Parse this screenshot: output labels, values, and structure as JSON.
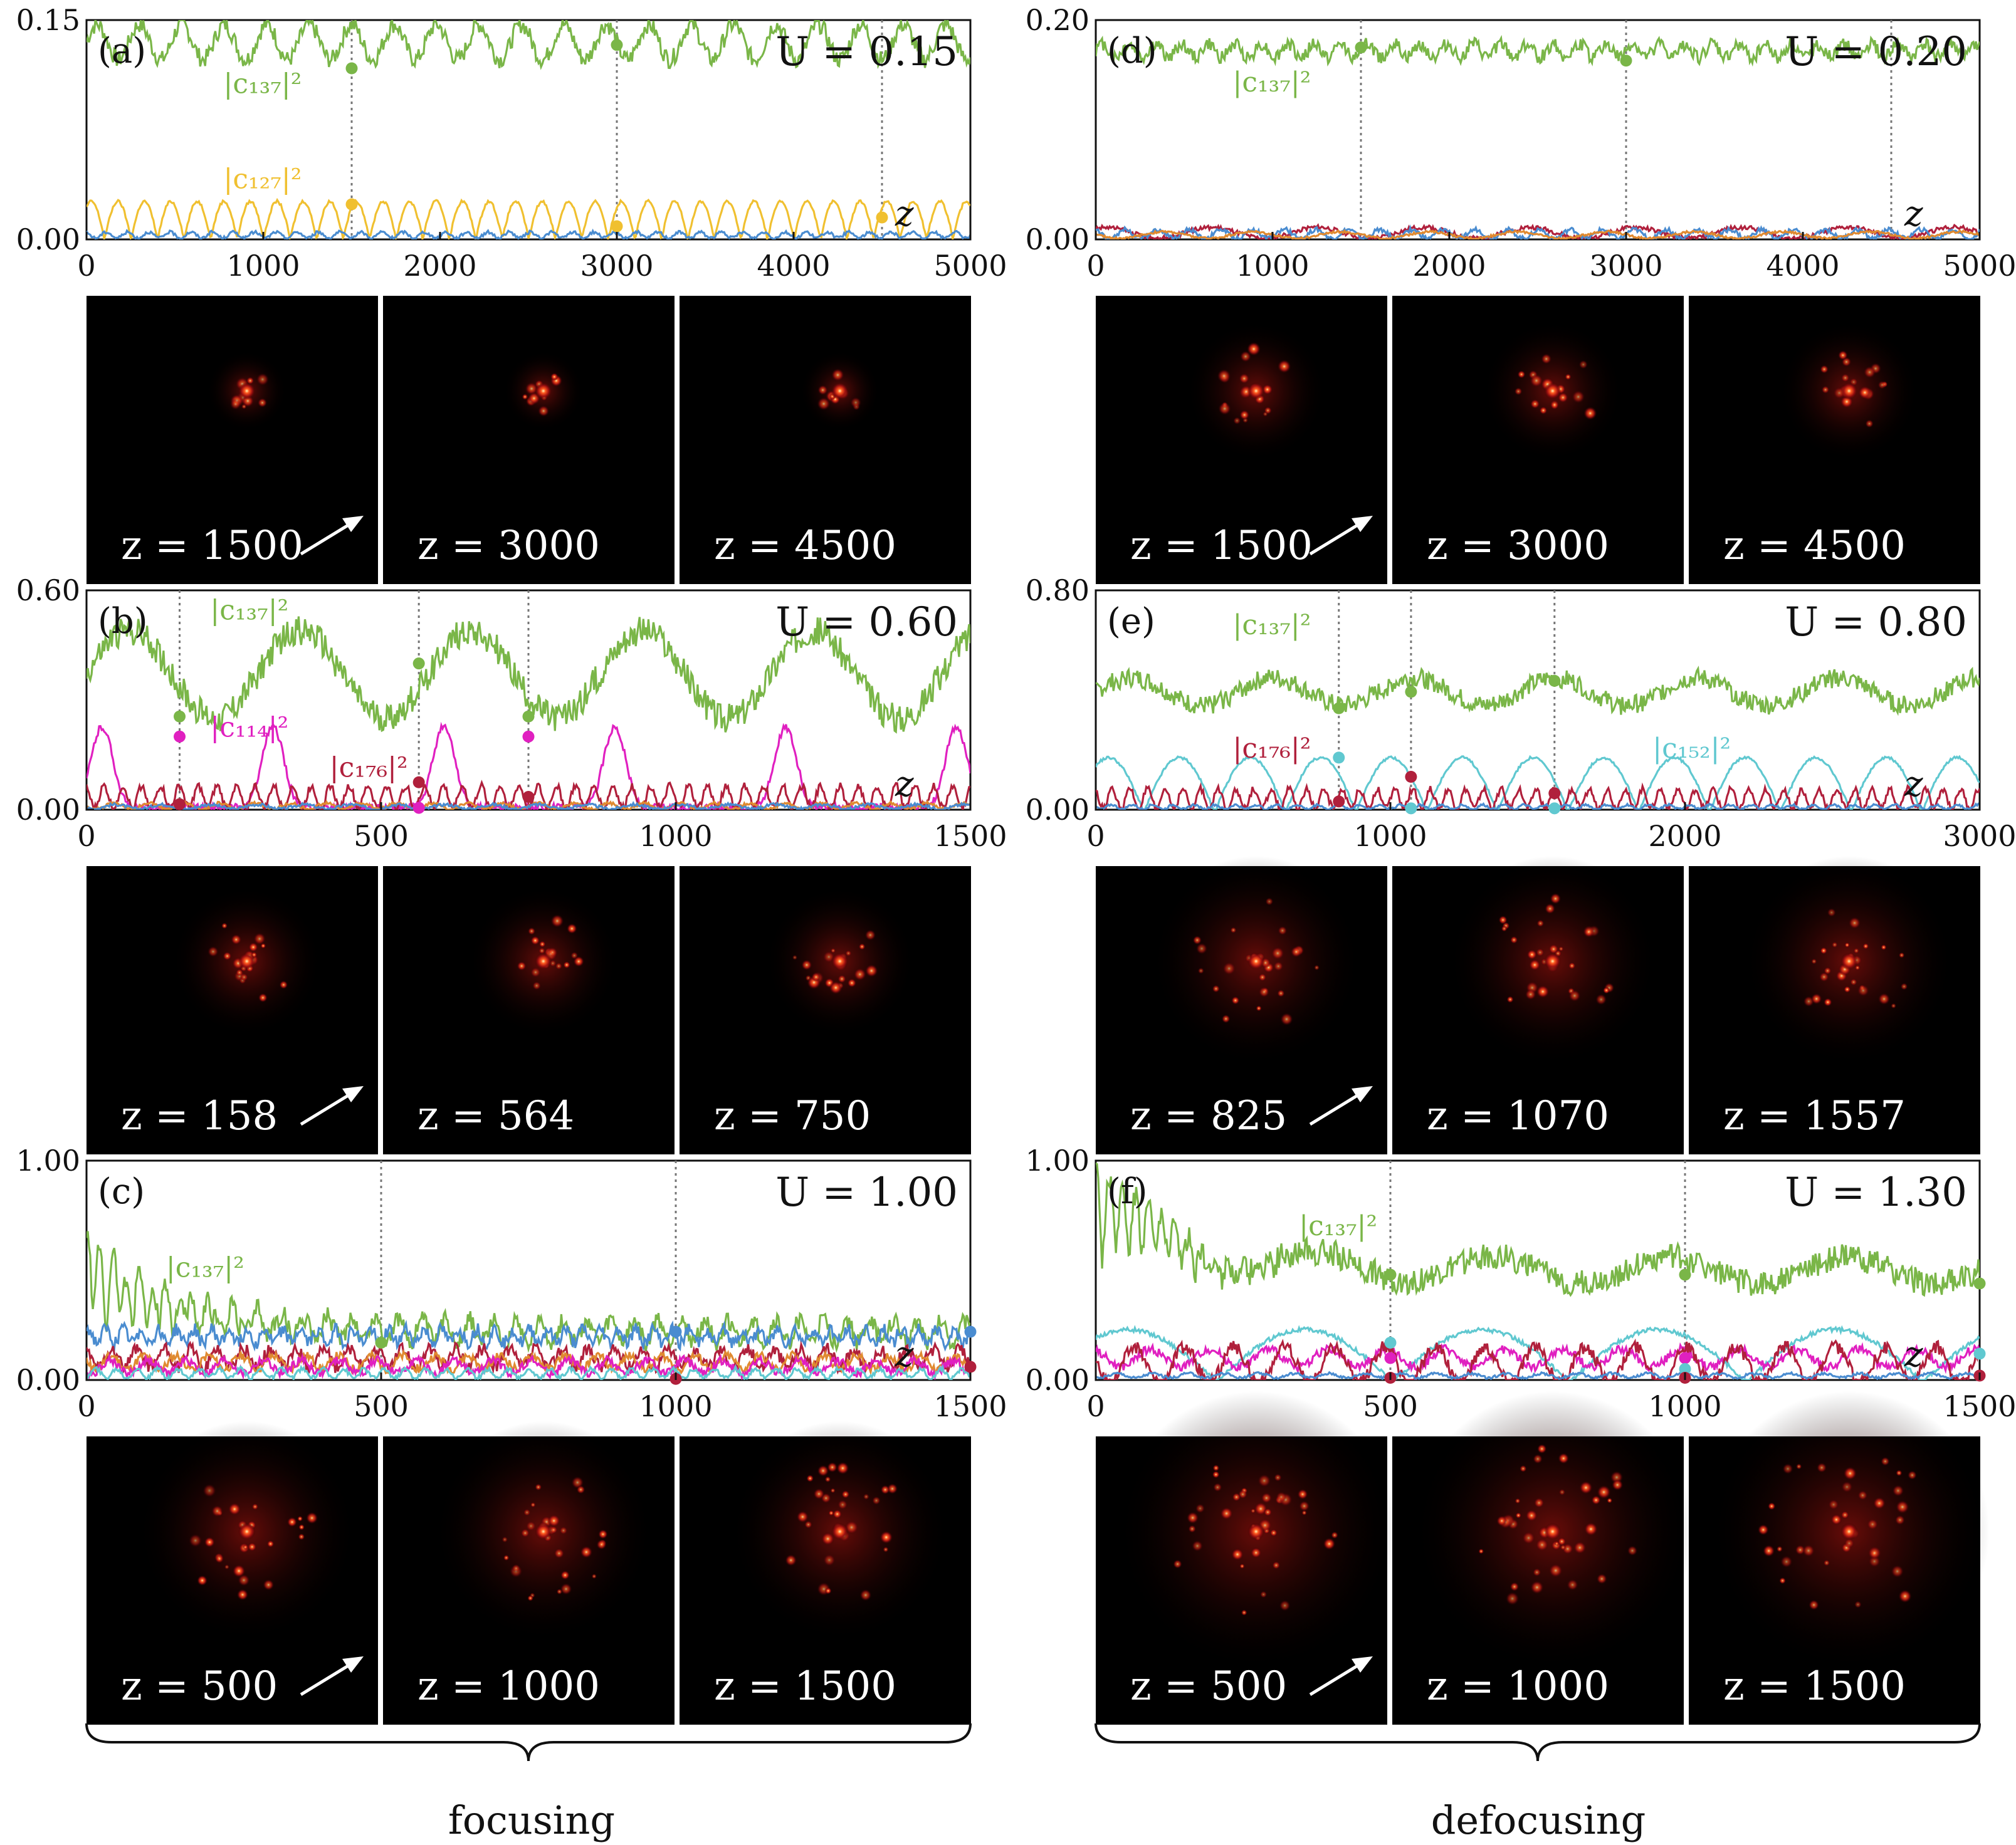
{
  "colors": {
    "green": "#7ab648",
    "yellow": "#f0c030",
    "blue": "#4a8cd0",
    "magenta": "#e020c0",
    "crimson": "#b0203c",
    "cyan": "#60c8d0",
    "orange": "#e08a30",
    "snapshot_bg": "#000000",
    "hot_core": "#fff5b0",
    "hot_mid": "#ff3a1a",
    "hot_dim": "#6a0a08"
  },
  "icons": {
    "arrow": "arrow-northeast-icon",
    "brace": "curly-brace-icon"
  },
  "bottom_labels": {
    "left": "focusing",
    "right": "defocusing"
  },
  "chart_data": [
    {
      "panel": "(a)",
      "type": "line",
      "u_label": "U = 0.15",
      "z_label": "z",
      "xlim": [
        0,
        5000
      ],
      "ylim": [
        0,
        0.15
      ],
      "xticks": [
        0,
        1000,
        2000,
        3000,
        4000,
        5000
      ],
      "yticks": [
        0.0,
        0.15
      ],
      "xticklabels": [
        "0",
        "1000",
        "2000",
        "3000",
        "4000",
        "5000"
      ],
      "yticklabels": [
        "0.00",
        "0.15"
      ],
      "vlines": [
        1500,
        3000,
        4500
      ],
      "series": [
        {
          "name": "|c137|²",
          "color": "green",
          "base": 0.135,
          "amp": 0.012,
          "period": 240,
          "noise": 0.006
        },
        {
          "name": "|c127|²",
          "color": "yellow",
          "base": 0.013,
          "amp": 0.013,
          "period": 300,
          "noise": 0.001,
          "abs": true
        },
        {
          "color": "blue",
          "base": 0.003,
          "amp": 0.002,
          "period": 120,
          "noise": 0.001
        }
      ],
      "markers": [
        {
          "x": 1500,
          "y": 0.117,
          "color": "green"
        },
        {
          "x": 3000,
          "y": 0.133,
          "color": "green"
        },
        {
          "x": 1500,
          "y": 0.024,
          "color": "yellow"
        },
        {
          "x": 3000,
          "y": 0.009,
          "color": "yellow"
        },
        {
          "x": 4500,
          "y": 0.015,
          "color": "yellow"
        }
      ],
      "series_labels": [
        {
          "text": "|c₁₃₇|²",
          "color": "green",
          "x": 0.155,
          "y": 0.1
        },
        {
          "text": "|c₁₂₇|²",
          "color": "yellow",
          "x": 0.155,
          "y": 0.035
        }
      ],
      "snapshots": [
        "z = 1500",
        "z = 3000",
        "z = 4500"
      ]
    },
    {
      "panel": "(b)",
      "type": "line",
      "u_label": "U = 0.60",
      "z_label": "z",
      "xlim": [
        0,
        1500
      ],
      "ylim": [
        0,
        0.6
      ],
      "xticks": [
        0,
        500,
        1000,
        1500
      ],
      "yticks": [
        0.0,
        0.6
      ],
      "xticklabels": [
        "0",
        "500",
        "1000",
        "1500"
      ],
      "yticklabels": [
        "0.00",
        "0.60"
      ],
      "vlines": [
        158,
        564,
        750
      ],
      "series": [
        {
          "name": "|c137|²",
          "color": "green",
          "base": 0.37,
          "amp": 0.12,
          "period": 290,
          "noise": 0.04
        },
        {
          "name": "|c114|²",
          "color": "magenta",
          "base": 0.05,
          "amp": 0.11,
          "period": 290,
          "noise": 0.01,
          "bump": true
        },
        {
          "name": "|c176|²",
          "color": "crimson",
          "base": 0.035,
          "amp": 0.03,
          "period": 32,
          "noise": 0.01
        },
        {
          "color": "orange",
          "base": 0.01,
          "amp": 0.008,
          "period": 60,
          "noise": 0.004
        },
        {
          "color": "blue",
          "base": 0.008,
          "amp": 0.006,
          "period": 80,
          "noise": 0.004
        }
      ],
      "markers": [
        {
          "x": 158,
          "y": 0.255,
          "color": "green"
        },
        {
          "x": 564,
          "y": 0.4,
          "color": "green"
        },
        {
          "x": 750,
          "y": 0.255,
          "color": "green"
        },
        {
          "x": 158,
          "y": 0.2,
          "color": "magenta"
        },
        {
          "x": 564,
          "y": 0.005,
          "color": "magenta"
        },
        {
          "x": 750,
          "y": 0.2,
          "color": "magenta"
        },
        {
          "x": 158,
          "y": 0.015,
          "color": "crimson"
        },
        {
          "x": 564,
          "y": 0.075,
          "color": "crimson"
        },
        {
          "x": 750,
          "y": 0.035,
          "color": "crimson"
        }
      ],
      "series_labels": [
        {
          "text": "|c₁₃₇|²",
          "color": "green",
          "x": 0.14,
          "y": 0.52
        },
        {
          "text": "|c₁₁₄|²",
          "color": "magenta",
          "x": 0.14,
          "y": 0.2
        },
        {
          "text": "|c₁₇₆|²",
          "color": "crimson",
          "x": 0.275,
          "y": 0.09
        }
      ],
      "snapshots": [
        "z = 158",
        "z = 564",
        "z = 750"
      ]
    },
    {
      "panel": "(c)",
      "type": "line",
      "u_label": "U = 1.00",
      "z_label": "z",
      "xlim": [
        0,
        1500
      ],
      "ylim": [
        0,
        1.0
      ],
      "xticks": [
        0,
        500,
        1000,
        1500
      ],
      "yticks": [
        0.0,
        1.0
      ],
      "xticklabels": [
        "0",
        "500",
        "1000",
        "1500"
      ],
      "yticklabels": [
        "0.00",
        "1.00"
      ],
      "vlines": [
        500,
        1000
      ],
      "series": [
        {
          "name": "|c137|²",
          "color": "green",
          "base": 0.22,
          "amp": 0.05,
          "period": 40,
          "noise": 0.04,
          "decay": true
        },
        {
          "color": "blue",
          "base": 0.2,
          "amp": 0.03,
          "period": 30,
          "noise": 0.03
        },
        {
          "color": "crimson",
          "base": 0.1,
          "amp": 0.04,
          "period": 45,
          "noise": 0.03
        },
        {
          "color": "orange",
          "base": 0.08,
          "amp": 0.03,
          "period": 55,
          "noise": 0.02
        },
        {
          "color": "magenta",
          "base": 0.06,
          "amp": 0.03,
          "period": 65,
          "noise": 0.02
        },
        {
          "color": "cyan",
          "base": 0.03,
          "amp": 0.02,
          "period": 35,
          "noise": 0.01
        }
      ],
      "markers": [
        {
          "x": 500,
          "y": 0.17,
          "color": "green"
        },
        {
          "x": 1000,
          "y": 0.22,
          "color": "blue"
        },
        {
          "x": 1000,
          "y": 0.005,
          "color": "crimson"
        },
        {
          "x": 1500,
          "y": 0.22,
          "color": "blue"
        },
        {
          "x": 1500,
          "y": 0.06,
          "color": "crimson"
        }
      ],
      "series_labels": [
        {
          "text": "|c₁₃₇|²",
          "color": "green",
          "x": 0.09,
          "y": 0.47
        }
      ],
      "snapshots": [
        "z = 500",
        "z = 1000",
        "z = 1500"
      ]
    },
    {
      "panel": "(d)",
      "type": "line",
      "u_label": "U = 0.20",
      "z_label": "z",
      "xlim": [
        0,
        5000
      ],
      "ylim": [
        0,
        0.2
      ],
      "xticks": [
        0,
        1000,
        2000,
        3000,
        4000,
        5000
      ],
      "yticks": [
        0.0,
        0.2
      ],
      "xticklabels": [
        "0",
        "1000",
        "2000",
        "3000",
        "4000",
        "5000"
      ],
      "yticklabels": [
        "0.00",
        "0.20"
      ],
      "vlines": [
        1500,
        3000,
        4500
      ],
      "series": [
        {
          "name": "|c137|²",
          "color": "green",
          "base": 0.172,
          "amp": 0.006,
          "period": 150,
          "noise": 0.006
        },
        {
          "color": "crimson",
          "base": 0.006,
          "amp": 0.005,
          "period": 600,
          "noise": 0.002
        },
        {
          "color": "blue",
          "base": 0.005,
          "amp": 0.004,
          "period": 180,
          "noise": 0.002
        },
        {
          "color": "orange",
          "base": 0.004,
          "amp": 0.003,
          "period": 500,
          "noise": 0.001
        }
      ],
      "markers": [
        {
          "x": 1500,
          "y": 0.175,
          "color": "green"
        },
        {
          "x": 3000,
          "y": 0.163,
          "color": "green"
        }
      ],
      "series_labels": [
        {
          "text": "|c₁₃₇|²",
          "color": "green",
          "x": 0.155,
          "y": 0.135
        }
      ],
      "snapshots": [
        "z = 1500",
        "z = 3000",
        "z = 4500"
      ]
    },
    {
      "panel": "(e)",
      "type": "line",
      "u_label": "U = 0.80",
      "z_label": "z",
      "xlim": [
        0,
        3000
      ],
      "ylim": [
        0,
        0.8
      ],
      "xticks": [
        0,
        1000,
        2000,
        3000
      ],
      "yticks": [
        0.0,
        0.8
      ],
      "xticklabels": [
        "0",
        "1000",
        "2000",
        "3000"
      ],
      "yticklabels": [
        "0.00",
        "0.80"
      ],
      "vlines": [
        825,
        1070,
        1557
      ],
      "series": [
        {
          "name": "|c137|²",
          "color": "green",
          "base": 0.43,
          "amp": 0.05,
          "period": 480,
          "noise": 0.035
        },
        {
          "name": "|c152|²",
          "color": "cyan",
          "base": 0.09,
          "amp": 0.1,
          "period": 480,
          "noise": 0.005,
          "abs": true
        },
        {
          "name": "|c176|²",
          "color": "crimson",
          "base": 0.04,
          "amp": 0.035,
          "period": 60,
          "noise": 0.012
        },
        {
          "color": "blue",
          "base": 0.01,
          "amp": 0.008,
          "period": 70,
          "noise": 0.004
        }
      ],
      "markers": [
        {
          "x": 825,
          "y": 0.37,
          "color": "green"
        },
        {
          "x": 1070,
          "y": 0.43,
          "color": "green"
        },
        {
          "x": 1557,
          "y": 0.47,
          "color": "green"
        },
        {
          "x": 825,
          "y": 0.19,
          "color": "cyan"
        },
        {
          "x": 1070,
          "y": 0.005,
          "color": "cyan"
        },
        {
          "x": 1557,
          "y": 0.005,
          "color": "cyan"
        },
        {
          "x": 825,
          "y": 0.03,
          "color": "crimson"
        },
        {
          "x": 1070,
          "y": 0.12,
          "color": "crimson"
        },
        {
          "x": 1557,
          "y": 0.06,
          "color": "crimson"
        }
      ],
      "series_labels": [
        {
          "text": "|c₁₃₇|²",
          "color": "green",
          "x": 0.155,
          "y": 0.64
        },
        {
          "text": "|c₁₇₆|²",
          "color": "crimson",
          "x": 0.155,
          "y": 0.19
        },
        {
          "text": "|c₁₅₂|²",
          "color": "cyan",
          "x": 0.63,
          "y": 0.19
        }
      ],
      "snapshots": [
        "z = 825",
        "z = 1070",
        "z = 1557"
      ]
    },
    {
      "panel": "(f)",
      "type": "line",
      "u_label": "U = 1.30",
      "z_label": "z",
      "xlim": [
        0,
        1500
      ],
      "ylim": [
        0,
        1.0
      ],
      "xticks": [
        0,
        500,
        1000,
        1500
      ],
      "yticks": [
        0.0,
        1.0
      ],
      "xticklabels": [
        "0",
        "500",
        "1000",
        "1500"
      ],
      "yticklabels": [
        "0.00",
        "1.00"
      ],
      "vlines": [
        500,
        1000
      ],
      "series": [
        {
          "name": "|c137|²",
          "color": "green",
          "base": 0.5,
          "amp": 0.06,
          "period": 300,
          "noise": 0.06,
          "decay": true
        },
        {
          "color": "cyan",
          "base": 0.11,
          "amp": 0.12,
          "period": 600,
          "noise": 0.01,
          "abs": true
        },
        {
          "color": "magenta",
          "base": 0.1,
          "amp": 0.04,
          "period": 100,
          "noise": 0.02
        },
        {
          "color": "crimson",
          "base": 0.07,
          "amp": 0.08,
          "period": 85,
          "noise": 0.03
        },
        {
          "color": "blue",
          "base": 0.02,
          "amp": 0.01,
          "period": 60,
          "noise": 0.006
        }
      ],
      "markers": [
        {
          "x": 500,
          "y": 0.48,
          "color": "green"
        },
        {
          "x": 1000,
          "y": 0.48,
          "color": "green"
        },
        {
          "x": 1500,
          "y": 0.44,
          "color": "green"
        },
        {
          "x": 500,
          "y": 0.17,
          "color": "cyan"
        },
        {
          "x": 500,
          "y": 0.1,
          "color": "magenta"
        },
        {
          "x": 500,
          "y": 0.01,
          "color": "crimson"
        },
        {
          "x": 1000,
          "y": 0.1,
          "color": "magenta"
        },
        {
          "x": 1000,
          "y": 0.05,
          "color": "cyan"
        },
        {
          "x": 1000,
          "y": 0.01,
          "color": "crimson"
        },
        {
          "x": 1500,
          "y": 0.12,
          "color": "cyan"
        },
        {
          "x": 1500,
          "y": 0.02,
          "color": "crimson"
        }
      ],
      "series_labels": [
        {
          "text": "|c₁₃₇|²",
          "color": "green",
          "x": 0.23,
          "y": 0.66
        }
      ],
      "snapshots": [
        "z = 500",
        "z = 1000",
        "z = 1500"
      ]
    }
  ]
}
